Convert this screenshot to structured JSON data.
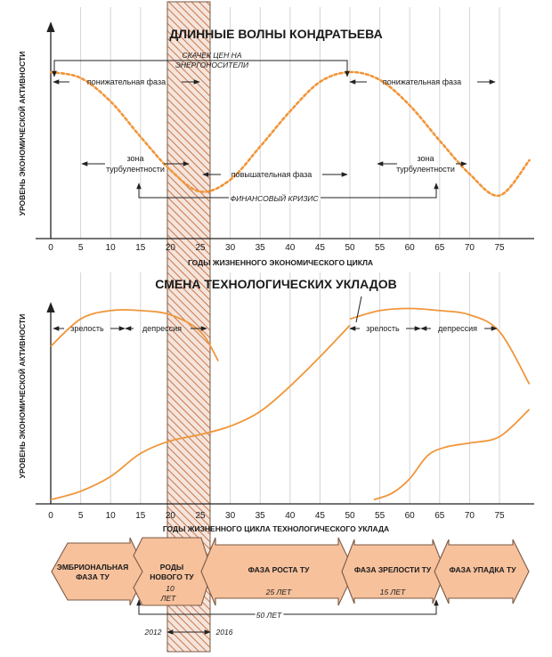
{
  "top_panel": {
    "title": "ДЛИННЫЕ ВОЛНЫ КОНДРАТЬЕВА",
    "y_label": "УРОВЕНЬ ЭКОНОМИЧЕСКОЙ АКТИВНОСТИ",
    "x_label": "ГОДЫ ЖИЗНЕННОГО ЭКОНОМИЧЕСКОГО ЦИКЛА",
    "price_jump_line1": "СКАЧЕК ЦЕН НА",
    "price_jump_line2": "ЭНЕРГОНОСИТЕЛИ",
    "down_phase_1": "понижательная фаза",
    "down_phase_2": "понижательная фаза",
    "up_phase": "повышательная фаза",
    "turb1_line1": "зона",
    "turb1_line2": "турбулентности",
    "turb2_line1": "зона",
    "turb2_line2": "турбулентности",
    "financial_crisis": "ФИНАНСОВЫЙ КРИЗИС"
  },
  "bottom_panel": {
    "title": "СМЕНА ТЕХНОЛОГИЧЕСКИХ УКЛАДОВ",
    "y_label": "УРОВЕНЬ ЭКОНОМИЧЕСКОЙ АКТИВНОСТИ",
    "x_label": "ГОДЫ ЖИЗНЕННОГО ЦИКЛА ТЕХНОЛОГИЧЕСКОГО УКЛАДА",
    "maturity_1": "зрелость",
    "depression_1": "депрессия",
    "maturity_2": "зрелость",
    "depression_2": "депрессия"
  },
  "x_ticks": [
    "0",
    "5",
    "10",
    "15",
    "20",
    "25",
    "30",
    "35",
    "40",
    "45",
    "50",
    "55",
    "60",
    "65",
    "70",
    "75"
  ],
  "phases": {
    "embryonic_line1": "ЭМБРИОНАЛЬНАЯ",
    "embryonic_line2": "ФАЗА ТУ",
    "birth_line1": "РОДЫ",
    "birth_line2": "НОВОГО ТУ",
    "birth_years_line1": "10",
    "birth_years_line2": "ЛЕТ",
    "growth": "ФАЗА РОСТА ТУ",
    "growth_years": "25 ЛЕТ",
    "maturity": "ФАЗА ЗРЕЛОСТИ ТУ",
    "maturity_years": "15 ЛЕТ",
    "decline": "ФАЗА УПАДКА ТУ",
    "total_years": "50 ЛЕТ",
    "year_start": "2012",
    "year_end": "2016"
  },
  "colors": {
    "curve": "#f0963a",
    "arrow_fill": "#f7c19c",
    "arrow_stroke": "#7a5a45",
    "hatch": "#c9784a",
    "axis": "#222222",
    "grid": "#d4d4d4"
  },
  "chart_data": [
    {
      "type": "line",
      "title": "ДЛИННЫЕ ВОЛНЫ КОНДРАТЬЕВА",
      "xlabel": "ГОДЫ ЖИЗНЕННОГО ЭКОНОМИЧЕСКОГО ЦИКЛА",
      "ylabel": "УРОВЕНЬ ЭКОНОМИЧЕСКОЙ АКТИВНОСТИ",
      "xlim": [
        0,
        80
      ],
      "grid": true,
      "series": [
        {
          "x": [
            0,
            5,
            10,
            15,
            20,
            25,
            30,
            35,
            40,
            45,
            50,
            55,
            60,
            65,
            70,
            75,
            80
          ],
          "y": [
            85,
            82,
            70,
            52,
            35,
            24,
            30,
            47,
            65,
            80,
            85,
            81,
            68,
            50,
            33,
            22,
            40
          ]
        }
      ]
    },
    {
      "type": "line",
      "title": "СМЕНА ТЕХНОЛОГИЧЕСКИХ УКЛАДОВ",
      "xlabel": "ГОДЫ ЖИЗНЕННОГО ЦИКЛА ТЕХНОЛОГИЧЕСКОГО УКЛАДА",
      "ylabel": "УРОВЕНЬ ЭКОНОМИЧЕСКОЙ АКТИВНОСТИ",
      "xlim": [
        0,
        80
      ],
      "grid": true,
      "series": [
        {
          "x": [
            0,
            5,
            10,
            15,
            20,
            25,
            28
          ],
          "y": [
            75,
            88,
            92,
            92,
            90,
            82,
            68
          ]
        },
        {
          "x": [
            0,
            5,
            10,
            15,
            20,
            25,
            30,
            35,
            40,
            45,
            50
          ],
          "y": [
            2,
            6,
            13,
            24,
            30,
            33,
            37,
            44,
            56,
            70,
            85
          ]
        },
        {
          "x": [
            50,
            55,
            60,
            65,
            70,
            75,
            80
          ],
          "y": [
            88,
            92,
            93,
            92,
            90,
            82,
            57
          ]
        },
        {
          "x": [
            54,
            57,
            60,
            63,
            66,
            70,
            75,
            80
          ],
          "y": [
            2,
            5,
            12,
            23,
            27,
            29,
            32,
            45
          ]
        }
      ]
    }
  ]
}
